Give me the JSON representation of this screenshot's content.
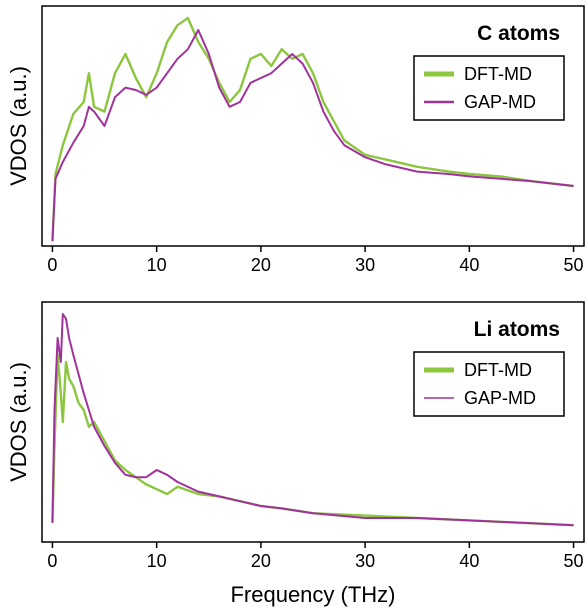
{
  "figure": {
    "xlabel": "Frequency (THz)"
  },
  "colors": {
    "dft": "#8cc63f",
    "gap": "#a0329c"
  },
  "chart_data": [
    {
      "type": "line",
      "title": "C atoms",
      "xlabel": "",
      "ylabel": "VDOS (a.u.)",
      "xlim": [
        -1,
        51
      ],
      "ylim": [
        0,
        1
      ],
      "xticks": [
        0,
        10,
        20,
        30,
        40,
        50
      ],
      "xtick_labels": [
        "0",
        "10",
        "20",
        "30",
        "40",
        "50"
      ],
      "yticks_visible": false,
      "legend": {
        "position": "top-right",
        "entries": [
          "DFT-MD",
          "GAP-MD"
        ]
      },
      "series": [
        {
          "name": "DFT-MD",
          "color": "#8cc63f",
          "x": [
            0,
            0.3,
            1,
            2,
            3,
            3.5,
            4,
            5,
            6,
            7,
            8,
            9,
            10,
            11,
            12,
            13,
            14,
            15,
            16,
            17,
            18,
            19,
            20,
            21,
            22,
            23,
            24,
            25,
            26,
            27,
            28,
            30,
            32,
            35,
            38,
            40,
            43,
            46,
            48,
            50
          ],
          "y": [
            0.02,
            0.3,
            0.42,
            0.55,
            0.6,
            0.72,
            0.58,
            0.56,
            0.72,
            0.8,
            0.7,
            0.62,
            0.72,
            0.85,
            0.92,
            0.95,
            0.85,
            0.78,
            0.68,
            0.6,
            0.65,
            0.78,
            0.8,
            0.75,
            0.82,
            0.78,
            0.8,
            0.72,
            0.6,
            0.52,
            0.44,
            0.38,
            0.36,
            0.33,
            0.31,
            0.3,
            0.29,
            0.27,
            0.26,
            0.25
          ]
        },
        {
          "name": "GAP-MD",
          "color": "#a0329c",
          "x": [
            0,
            0.3,
            1,
            2,
            3,
            3.5,
            4,
            5,
            6,
            7,
            8,
            9,
            10,
            11,
            12,
            13,
            14,
            15,
            16,
            17,
            18,
            19,
            20,
            21,
            22,
            23,
            24,
            25,
            26,
            27,
            28,
            30,
            32,
            35,
            38,
            40,
            43,
            46,
            48,
            50
          ],
          "y": [
            0.02,
            0.28,
            0.35,
            0.43,
            0.5,
            0.58,
            0.56,
            0.5,
            0.62,
            0.66,
            0.65,
            0.63,
            0.66,
            0.72,
            0.78,
            0.82,
            0.9,
            0.8,
            0.66,
            0.58,
            0.6,
            0.68,
            0.7,
            0.72,
            0.76,
            0.8,
            0.76,
            0.68,
            0.56,
            0.48,
            0.42,
            0.37,
            0.34,
            0.31,
            0.3,
            0.29,
            0.28,
            0.27,
            0.26,
            0.25
          ]
        }
      ]
    },
    {
      "type": "line",
      "title": "Li atoms",
      "xlabel": "Frequency (THz)",
      "ylabel": "VDOS (a.u.)",
      "xlim": [
        -1,
        51
      ],
      "ylim": [
        0,
        1
      ],
      "xticks": [
        0,
        10,
        20,
        30,
        40,
        50
      ],
      "xtick_labels": [
        "0",
        "10",
        "20",
        "30",
        "40",
        "50"
      ],
      "yticks_visible": false,
      "legend": {
        "position": "top-right",
        "entries": [
          "DFT-MD",
          "GAP-MD"
        ]
      },
      "series": [
        {
          "name": "DFT-MD",
          "color": "#8cc63f",
          "x": [
            0,
            0.2,
            0.5,
            0.8,
            1,
            1.3,
            1.6,
            2,
            2.5,
            3,
            3.5,
            4,
            5,
            6,
            7,
            8,
            9,
            10,
            11,
            12,
            14,
            16,
            18,
            20,
            22,
            25,
            30,
            35,
            40,
            45,
            50
          ],
          "y": [
            0.08,
            0.4,
            0.78,
            0.62,
            0.5,
            0.75,
            0.68,
            0.65,
            0.58,
            0.55,
            0.48,
            0.5,
            0.42,
            0.34,
            0.3,
            0.27,
            0.24,
            0.22,
            0.2,
            0.23,
            0.2,
            0.19,
            0.17,
            0.15,
            0.14,
            0.12,
            0.11,
            0.1,
            0.09,
            0.08,
            0.07
          ]
        },
        {
          "name": "GAP-MD",
          "color": "#a0329c",
          "x": [
            0,
            0.2,
            0.5,
            0.8,
            1,
            1.3,
            1.6,
            2,
            2.5,
            3,
            3.5,
            4,
            5,
            6,
            7,
            8,
            9,
            10,
            11,
            12,
            14,
            16,
            18,
            20,
            22,
            25,
            30,
            35,
            40,
            45,
            50
          ],
          "y": [
            0.08,
            0.55,
            0.85,
            0.75,
            0.95,
            0.93,
            0.85,
            0.78,
            0.7,
            0.62,
            0.55,
            0.48,
            0.4,
            0.33,
            0.28,
            0.27,
            0.27,
            0.3,
            0.28,
            0.25,
            0.21,
            0.19,
            0.17,
            0.15,
            0.14,
            0.12,
            0.1,
            0.1,
            0.09,
            0.08,
            0.07
          ]
        }
      ]
    }
  ]
}
